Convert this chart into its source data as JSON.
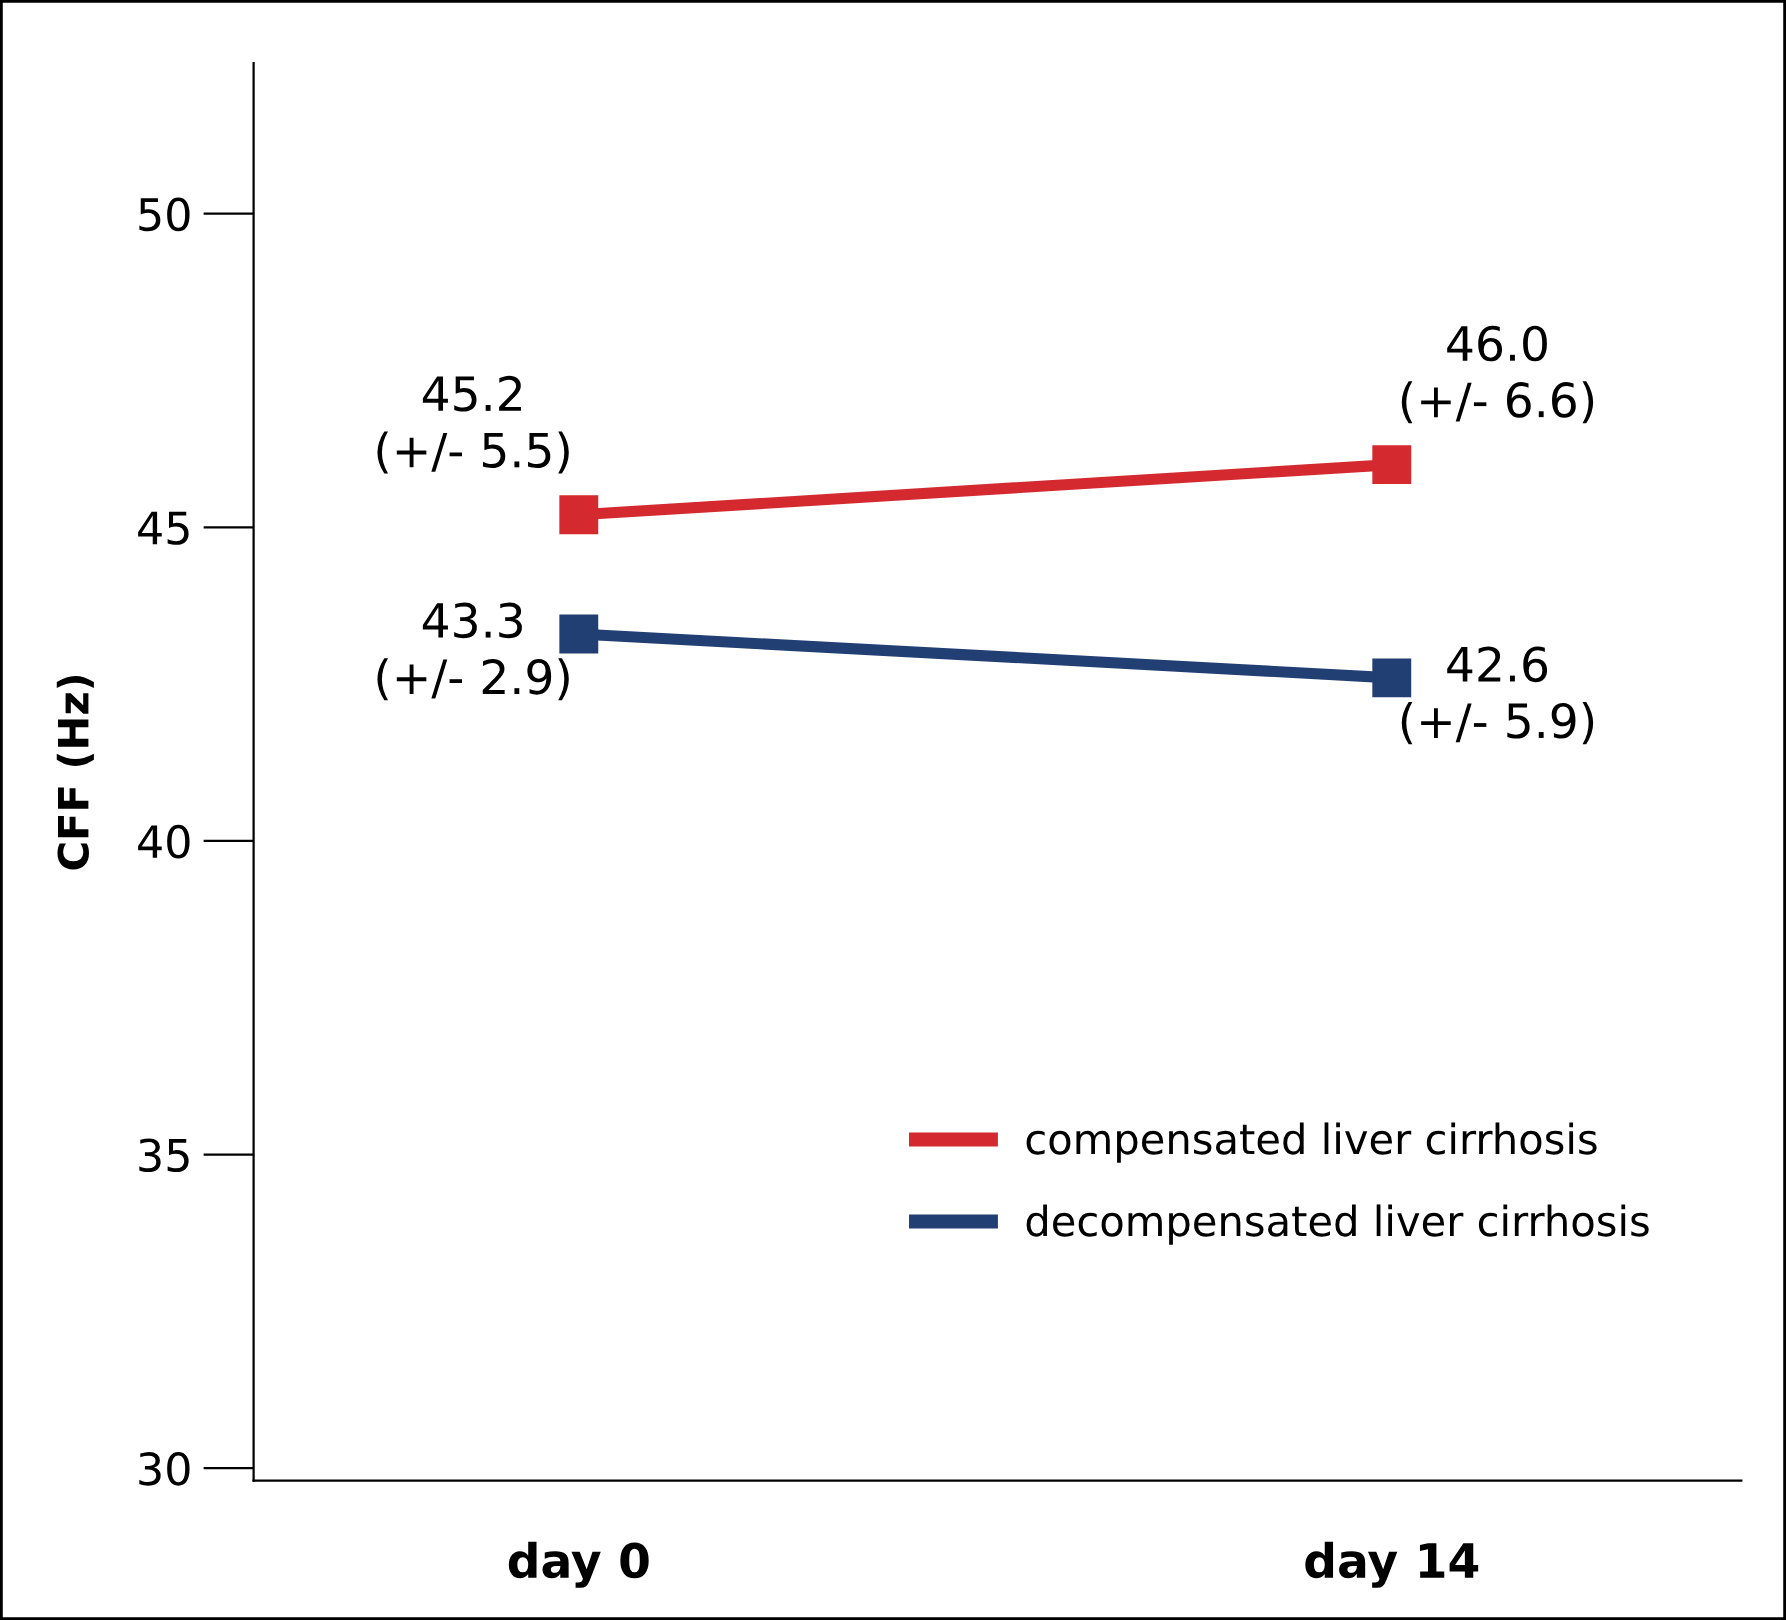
{
  "chart_data": {
    "type": "line",
    "ylabel": "CFF (Hz)",
    "categories": [
      "day 0",
      "day 14"
    ],
    "series": [
      {
        "name": "compensated liver cirrhosis",
        "color": "#d42a2f",
        "values": [
          45.2,
          46.0
        ],
        "value_labels": [
          "45.2\n(+/- 5.5)",
          "46.0\n(+/- 6.6)"
        ]
      },
      {
        "name": "decompensated liver cirrhosis",
        "color": "#223f73",
        "values": [
          43.3,
          42.6
        ],
        "value_labels": [
          "43.3\n(+/- 2.9)",
          "42.6\n(+/- 5.9)"
        ]
      }
    ],
    "ylim": [
      29.8,
      52.4
    ],
    "yticks": [
      30,
      35,
      40,
      45,
      50
    ],
    "marker": "square",
    "legend": "bottom right",
    "grid": false
  }
}
